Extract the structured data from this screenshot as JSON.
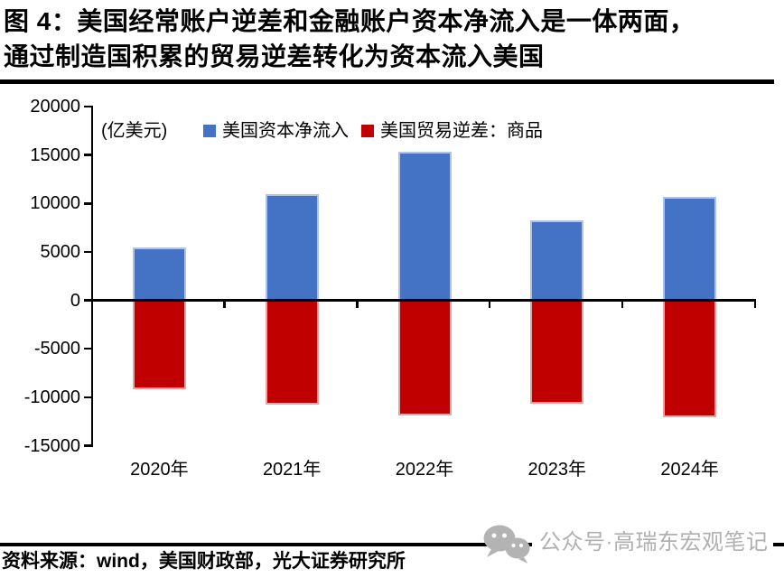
{
  "figure": {
    "title_line1": "图 4：美国经常账户逆差和金融账户资本净流入是一体两面，",
    "title_line2": "通过制造国积累的贸易逆差转化为资本流入美国",
    "source": "资料来源：wind，美国财政部，光大证券研究所",
    "watermark_text": "公众号·高瑞东宏观笔记",
    "watermark_icon": "wechat-icon",
    "colors": {
      "capital_inflow_blue": "#4472C4",
      "trade_deficit_red": "#C00000",
      "watermark_gray": "#b0b0b0",
      "axis_black": "#000000"
    }
  },
  "chart_data": {
    "type": "bar",
    "title": "",
    "unit_label": "(亿美元)",
    "categories": [
      "2020年",
      "2021年",
      "2022年",
      "2023年",
      "2024年"
    ],
    "series": [
      {
        "name": "美国资本净流入",
        "color": "#4472C4",
        "values": [
          5500,
          11000,
          15300,
          8300,
          10700
        ]
      },
      {
        "name": "美国贸易逆差：商品",
        "color": "#C00000",
        "values": [
          -9200,
          -10800,
          -11900,
          -10700,
          -12100
        ]
      }
    ],
    "xlabel": "",
    "ylabel": "",
    "ylim": [
      -15000,
      20000
    ],
    "yticks": [
      20000,
      15000,
      10000,
      5000,
      0,
      -5000,
      -10000,
      -15000
    ],
    "grid": false,
    "legend_position": "top"
  }
}
